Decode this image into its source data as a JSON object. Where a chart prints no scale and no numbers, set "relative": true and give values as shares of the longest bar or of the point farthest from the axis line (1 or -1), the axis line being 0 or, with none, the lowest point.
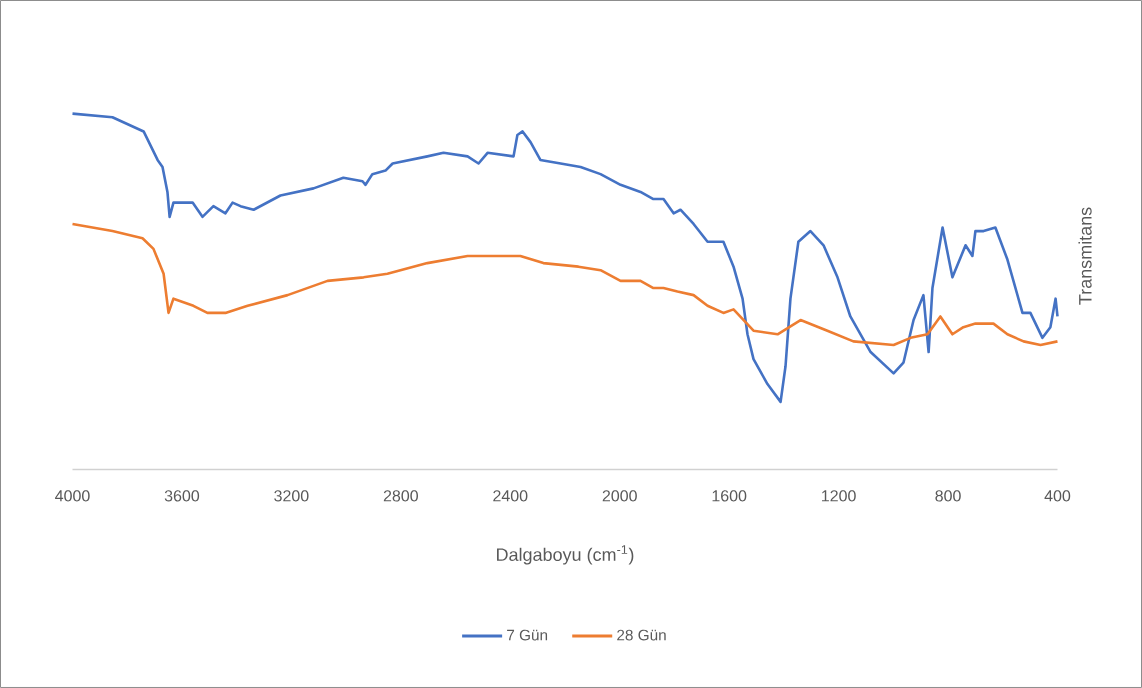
{
  "chart_data": {
    "type": "line",
    "relative": true,
    "xlabel": "Dalgaboyu (cm$^{-1}$)",
    "ylabel": "Transmitans",
    "xlim": [
      4000,
      400
    ],
    "xticks": [
      4000,
      3600,
      3200,
      2800,
      2400,
      2000,
      1600,
      1200,
      800,
      400
    ],
    "legend": "bottom",
    "series": [
      {
        "name": "7 Gün",
        "color": "#4472c4",
        "x": [
          4000,
          3854,
          3740,
          3689,
          3671,
          3653,
          3645,
          3631,
          3561,
          3525,
          3485,
          3441,
          3415,
          3386,
          3338,
          3240,
          3119,
          3010,
          2940,
          2929,
          2904,
          2856,
          2830,
          2703,
          2644,
          2556,
          2516,
          2483,
          2388,
          2374,
          2355,
          2326,
          2290,
          2216,
          2143,
          2070,
          1997,
          1924,
          1877,
          1840,
          1803,
          1778,
          1730,
          1679,
          1621,
          1584,
          1551,
          1533,
          1511,
          1460,
          1412,
          1394,
          1376,
          1347,
          1303,
          1255,
          1204,
          1157,
          1083,
          999,
          963,
          926,
          890,
          871,
          857,
          820,
          784,
          736,
          711,
          700,
          670,
          627,
          583,
          528,
          499,
          455,
          426,
          407,
          400
        ],
        "values": [
          1.0,
          0.99,
          0.95,
          0.87,
          0.85,
          0.78,
          0.71,
          0.75,
          0.75,
          0.71,
          0.74,
          0.72,
          0.75,
          0.74,
          0.73,
          0.77,
          0.79,
          0.82,
          0.81,
          0.8,
          0.83,
          0.84,
          0.86,
          0.88,
          0.89,
          0.88,
          0.86,
          0.89,
          0.88,
          0.94,
          0.95,
          0.92,
          0.87,
          0.86,
          0.85,
          0.83,
          0.8,
          0.78,
          0.76,
          0.76,
          0.72,
          0.73,
          0.69,
          0.64,
          0.64,
          0.57,
          0.48,
          0.38,
          0.31,
          0.24,
          0.19,
          0.29,
          0.48,
          0.64,
          0.67,
          0.63,
          0.54,
          0.43,
          0.33,
          0.27,
          0.3,
          0.42,
          0.49,
          0.33,
          0.51,
          0.68,
          0.54,
          0.63,
          0.6,
          0.67,
          0.67,
          0.68,
          0.59,
          0.44,
          0.44,
          0.37,
          0.4,
          0.48,
          0.43
        ]
      },
      {
        "name": "28 Gün",
        "color": "#ed7d31",
        "x": [
          4000,
          3854,
          3744,
          3704,
          3667,
          3649,
          3631,
          3558,
          3507,
          3441,
          3360,
          3214,
          3068,
          2936,
          2849,
          2703,
          2556,
          2363,
          2279,
          2151,
          2070,
          1997,
          1924,
          1877,
          1840,
          1789,
          1730,
          1679,
          1621,
          1584,
          1511,
          1423,
          1339,
          1241,
          1146,
          999,
          937,
          875,
          828,
          784,
          744,
          700,
          634,
          583,
          524,
          462,
          400
        ],
        "values": [
          0.69,
          0.67,
          0.65,
          0.62,
          0.55,
          0.44,
          0.48,
          0.46,
          0.44,
          0.44,
          0.46,
          0.49,
          0.53,
          0.54,
          0.55,
          0.58,
          0.6,
          0.6,
          0.58,
          0.57,
          0.56,
          0.53,
          0.53,
          0.51,
          0.51,
          0.5,
          0.49,
          0.46,
          0.44,
          0.45,
          0.39,
          0.38,
          0.42,
          0.39,
          0.36,
          0.35,
          0.37,
          0.38,
          0.43,
          0.38,
          0.4,
          0.41,
          0.41,
          0.38,
          0.36,
          0.35,
          0.36
        ]
      }
    ]
  }
}
